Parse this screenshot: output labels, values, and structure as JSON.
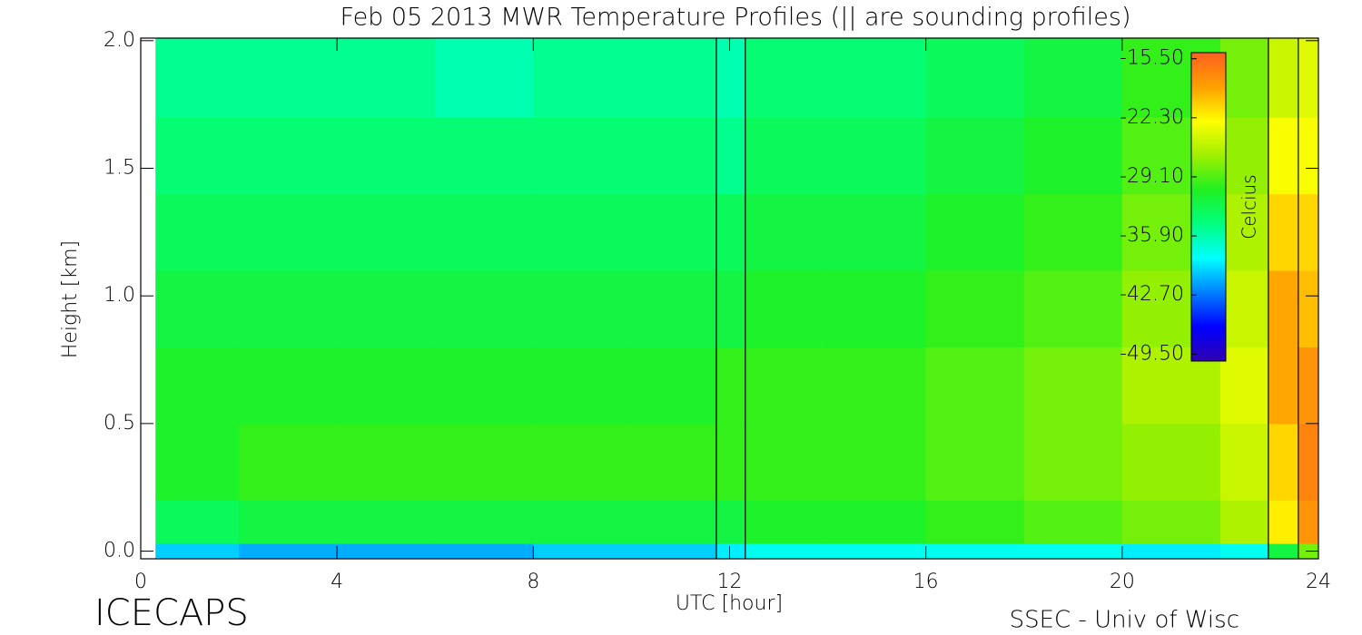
{
  "chart_data": {
    "type": "heatmap",
    "title": "Feb 05 2013 MWR Temperature Profiles (|| are sounding profiles)",
    "x_label": "UTC [hour]",
    "y_label": "Height [km]",
    "colorbar_label": "Celcius",
    "footer_left": "ICECAPS",
    "footer_right": "SSEC - Univ of Wisc",
    "xlim": [
      0,
      24
    ],
    "xticks": [
      0,
      4,
      8,
      12,
      16,
      20,
      24
    ],
    "ylim": [
      -0.03,
      2.01
    ],
    "yticks": [
      {
        "value": 0,
        "label": "0.0"
      },
      0.5,
      {
        "value": 1,
        "label": "1.0"
      },
      1.5,
      {
        "value": 2,
        "label": "2.0"
      }
    ],
    "clim": [
      -50.3,
      -14.8
    ],
    "cticks": [
      {
        "value": -15.5,
        "label": "-15.50"
      },
      {
        "value": -22.3,
        "label": "-22.30"
      },
      {
        "value": -29.1,
        "label": "-29.10"
      },
      {
        "value": -35.9,
        "label": "-35.90"
      },
      {
        "value": -42.7,
        "label": "-42.70"
      },
      {
        "value": -49.5,
        "label": "-49.50"
      }
    ],
    "colorscale": [
      "#3000b0",
      "#0000ff",
      "#0080ff",
      "#00ffff",
      "#00ff80",
      "#20f020",
      "#a0f000",
      "#ffff00",
      "#ffa000",
      "#ff6020"
    ],
    "sounding_times": [
      11.73,
      12.32,
      22.98,
      23.59
    ],
    "x_bins": [
      0.3,
      2,
      4,
      6,
      8,
      10,
      11.73,
      12.32,
      14,
      16,
      18,
      20,
      22,
      22.98,
      23.59,
      24
    ],
    "y_bins": [
      -0.03,
      0.03,
      0.2,
      0.5,
      0.8,
      1.1,
      1.4,
      1.7,
      2.01
    ],
    "z": [
      [
        -40,
        -41,
        -41,
        -41,
        -40,
        -40,
        -39,
        -38,
        -38,
        -38,
        -38,
        -39,
        -38,
        -32,
        -28
      ],
      [
        -33,
        -32,
        -32,
        -32,
        -32,
        -32,
        -32,
        -31,
        -31,
        -30,
        -29,
        -28,
        -26,
        -22,
        -18
      ],
      [
        -31,
        -30,
        -30,
        -30,
        -30,
        -30,
        -30,
        -30,
        -30,
        -29,
        -28,
        -27,
        -25,
        -21,
        -17
      ],
      [
        -31,
        -31,
        -31,
        -31,
        -31,
        -31,
        -30,
        -30,
        -30,
        -29,
        -28,
        -26,
        -24,
        -19,
        -18
      ],
      [
        -32,
        -32,
        -32,
        -32,
        -32,
        -32,
        -32,
        -31,
        -31,
        -30,
        -29,
        -27,
        -25,
        -19,
        -20
      ],
      [
        -33,
        -33,
        -33,
        -33,
        -33,
        -33,
        -33,
        -32,
        -32,
        -31,
        -30,
        -28,
        -26,
        -21,
        -21
      ],
      [
        -34,
        -34,
        -34,
        -34,
        -34,
        -34,
        -35,
        -33,
        -33,
        -32,
        -31,
        -29,
        -27,
        -23,
        -23
      ],
      [
        -35,
        -35,
        -35,
        -36,
        -35,
        -35,
        -36,
        -34,
        -34,
        -33,
        -32,
        -30,
        -28,
        -25,
        -24
      ]
    ]
  }
}
